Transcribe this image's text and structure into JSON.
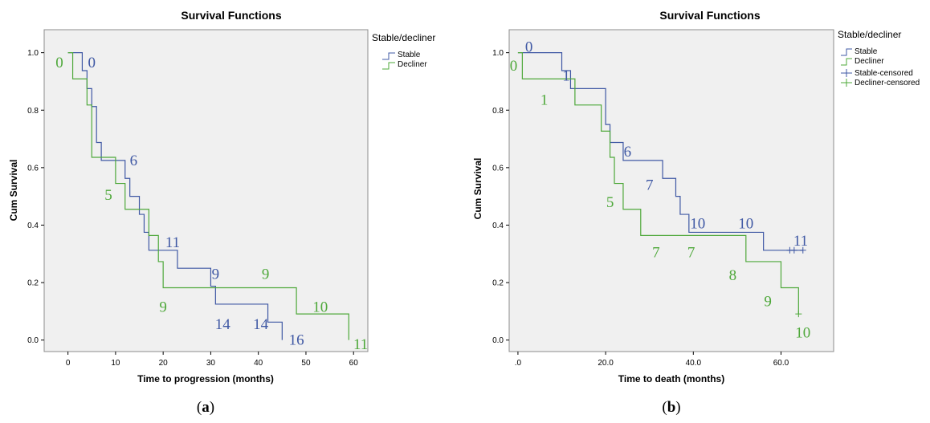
{
  "colors": {
    "stable": "#3f58a4",
    "decliner": "#4ea83a",
    "plot_bg": "#f0f0f0",
    "frame": "#8c8c8c"
  },
  "chart_data": [
    {
      "type": "line",
      "step": true,
      "title": "Survival Functions",
      "xlabel": "Time to progression (months)",
      "ylabel": "Cum Survival",
      "xlim": [
        -5,
        63
      ],
      "ylim": [
        -0.04,
        1.08
      ],
      "xticks": [
        0,
        10,
        20,
        30,
        40,
        50,
        60
      ],
      "xtick_labels": [
        "0",
        "10",
        "20",
        "30",
        "40",
        "50",
        "60"
      ],
      "yticks": [
        0.0,
        0.2,
        0.4,
        0.6,
        0.8,
        1.0
      ],
      "ytick_labels": [
        "0.0",
        "0.2",
        "0.4",
        "0.6",
        "0.8",
        "1.0"
      ],
      "grid": false,
      "legend": {
        "title": "Stable/decliner",
        "position": "outside-right"
      },
      "series": [
        {
          "name": "Stable",
          "color_key": "stable",
          "censored": false,
          "x": [
            0,
            3,
            4,
            5,
            6,
            7,
            12,
            13,
            15,
            16,
            17,
            23,
            30,
            31,
            42,
            45
          ],
          "y": [
            1.0,
            0.9375,
            0.875,
            0.8125,
            0.6875,
            0.625,
            0.5625,
            0.5,
            0.4375,
            0.375,
            0.3125,
            0.25,
            0.1875,
            0.125,
            0.0625,
            0.0
          ]
        },
        {
          "name": "Decliner",
          "color_key": "decliner",
          "x": [
            0,
            1,
            4,
            5,
            10,
            12,
            17,
            19,
            20,
            48,
            59
          ],
          "y": [
            1.0,
            0.909,
            0.818,
            0.636,
            0.545,
            0.455,
            0.364,
            0.273,
            0.182,
            0.091,
            0.0
          ]
        }
      ],
      "annotations": [
        {
          "text": "0",
          "color_key": "decliner",
          "x": -1.8,
          "y": 0.965
        },
        {
          "text": "0",
          "color_key": "stable",
          "x": 5.0,
          "y": 0.965
        },
        {
          "text": "6",
          "color_key": "stable",
          "x": 13.8,
          "y": 0.625
        },
        {
          "text": "5",
          "color_key": "decliner",
          "x": 8.5,
          "y": 0.505
        },
        {
          "text": "11",
          "color_key": "stable",
          "x": 22.0,
          "y": 0.34
        },
        {
          "text": "9",
          "color_key": "stable",
          "x": 31.0,
          "y": 0.23
        },
        {
          "text": "9",
          "color_key": "decliner",
          "x": 41.5,
          "y": 0.23
        },
        {
          "text": "9",
          "color_key": "decliner",
          "x": 20.0,
          "y": 0.115
        },
        {
          "text": "10",
          "color_key": "decliner",
          "x": 53.0,
          "y": 0.115
        },
        {
          "text": "14",
          "color_key": "stable",
          "x": 32.5,
          "y": 0.055
        },
        {
          "text": "14",
          "color_key": "stable",
          "x": 40.5,
          "y": 0.055
        },
        {
          "text": "16",
          "color_key": "stable",
          "x": 48.0,
          "y": 0.0
        },
        {
          "text": "11",
          "color_key": "decliner",
          "x": 61.5,
          "y": -0.015
        }
      ]
    },
    {
      "type": "line",
      "step": true,
      "title": "Survival Functions",
      "xlabel": "Time to death (months)",
      "ylabel": "Cum Survival",
      "xlim": [
        -2,
        72
      ],
      "ylim": [
        -0.04,
        1.08
      ],
      "xticks": [
        0,
        20,
        40,
        60
      ],
      "xtick_labels": [
        ".0",
        "20.0",
        "40.0",
        "60.0"
      ],
      "yticks": [
        0.0,
        0.2,
        0.4,
        0.6,
        0.8,
        1.0
      ],
      "ytick_labels": [
        "0.0",
        "0.2",
        "0.4",
        "0.6",
        "0.8",
        "1.0"
      ],
      "grid": false,
      "legend": {
        "title": "Stable/decliner",
        "position": "outside-right"
      },
      "series": [
        {
          "name": "Stable",
          "color_key": "stable",
          "x": [
            0,
            10,
            12,
            20,
            21,
            23,
            24,
            33,
            36,
            37,
            39,
            56
          ],
          "y": [
            1.0,
            0.9375,
            0.875,
            0.75,
            0.6875,
            0.6875,
            0.625,
            0.5625,
            0.5,
            0.4375,
            0.375,
            0.3125
          ],
          "end_x": 65
        },
        {
          "name": "Decliner",
          "color_key": "decliner",
          "x": [
            0,
            1,
            13,
            19,
            21,
            22,
            24,
            28,
            52,
            60,
            64
          ],
          "y": [
            1.0,
            0.909,
            0.818,
            0.727,
            0.636,
            0.545,
            0.455,
            0.364,
            0.273,
            0.182,
            0.091
          ],
          "end_x": 64
        },
        {
          "name": "Stable-censored",
          "color_key": "stable",
          "marker": "plus",
          "x": [
            62,
            63,
            65
          ],
          "y": [
            0.3125,
            0.3125,
            0.3125
          ]
        },
        {
          "name": "Decliner-censored",
          "color_key": "decliner",
          "marker": "plus",
          "x": [
            64
          ],
          "y": [
            0.091
          ]
        }
      ],
      "annotations": [
        {
          "text": "0",
          "color_key": "stable",
          "x": 2.5,
          "y": 1.02
        },
        {
          "text": "0",
          "color_key": "decliner",
          "x": -1.0,
          "y": 0.955
        },
        {
          "text": "1",
          "color_key": "stable",
          "x": 11.0,
          "y": 0.92
        },
        {
          "text": "1",
          "color_key": "decliner",
          "x": 6.0,
          "y": 0.835
        },
        {
          "text": "6",
          "color_key": "stable",
          "x": 25.0,
          "y": 0.655
        },
        {
          "text": "7",
          "color_key": "stable",
          "x": 30.0,
          "y": 0.54
        },
        {
          "text": "5",
          "color_key": "decliner",
          "x": 21.0,
          "y": 0.48
        },
        {
          "text": "10",
          "color_key": "stable",
          "x": 41.0,
          "y": 0.405
        },
        {
          "text": "10",
          "color_key": "stable",
          "x": 52.0,
          "y": 0.405
        },
        {
          "text": "11",
          "color_key": "stable",
          "x": 64.5,
          "y": 0.345
        },
        {
          "text": "7",
          "color_key": "decliner",
          "x": 31.5,
          "y": 0.305
        },
        {
          "text": "7",
          "color_key": "decliner",
          "x": 39.5,
          "y": 0.305
        },
        {
          "text": "8",
          "color_key": "decliner",
          "x": 49.0,
          "y": 0.225
        },
        {
          "text": "9",
          "color_key": "decliner",
          "x": 57.0,
          "y": 0.135
        },
        {
          "text": "10",
          "color_key": "decliner",
          "x": 65.0,
          "y": 0.025
        }
      ]
    }
  ],
  "captions": [
    {
      "open": "(",
      "letter": "a",
      "close": ")"
    },
    {
      "open": "(",
      "letter": "b",
      "close": ")"
    }
  ]
}
